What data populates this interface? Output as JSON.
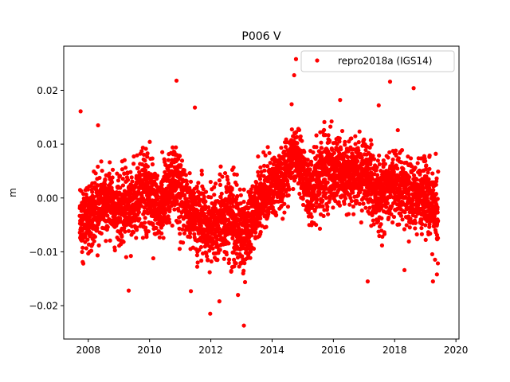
{
  "chart_data": {
    "type": "scatter",
    "title": "P006 V",
    "xlabel": "",
    "ylabel": "m",
    "xlim": [
      2007.2,
      2020.1
    ],
    "ylim": [
      -0.0262,
      0.0282
    ],
    "x_ticks": [
      2008,
      2010,
      2012,
      2014,
      2016,
      2018,
      2020
    ],
    "x_tick_labels": [
      "2008",
      "2010",
      "2012",
      "2014",
      "2016",
      "2018",
      "2020"
    ],
    "y_ticks": [
      -0.02,
      -0.01,
      0.0,
      0.01,
      0.02
    ],
    "y_tick_labels": [
      "−0.02",
      "−0.01",
      "0.00",
      "0.01",
      "0.02"
    ],
    "grid": false,
    "legend_position": "top-right",
    "marker_color": "#ff0000",
    "series": [
      {
        "name": "repro2018a (IGS14)",
        "color": "#ff0000",
        "x_range": [
          2007.72,
          2019.42
        ],
        "points": [
          {
            "x": 2007.75,
            "y": 0.0161
          },
          {
            "x": 2010.88,
            "y": 0.0218
          },
          {
            "x": 2014.78,
            "y": 0.0258
          },
          {
            "x": 2014.72,
            "y": 0.0228
          },
          {
            "x": 2017.85,
            "y": 0.0216
          },
          {
            "x": 2018.62,
            "y": 0.0204
          },
          {
            "x": 2013.08,
            "y": -0.0237
          },
          {
            "x": 2011.98,
            "y": -0.0215
          },
          {
            "x": 2009.32,
            "y": -0.0172
          },
          {
            "x": 2011.48,
            "y": 0.0168
          },
          {
            "x": 2011.35,
            "y": -0.0173
          },
          {
            "x": 2012.28,
            "y": -0.0192
          },
          {
            "x": 2017.12,
            "y": -0.0155
          },
          {
            "x": 2018.32,
            "y": -0.0134
          },
          {
            "x": 2019.25,
            "y": -0.0155
          },
          {
            "x": 2019.38,
            "y": -0.0142
          },
          {
            "x": 2016.22,
            "y": 0.0182
          },
          {
            "x": 2017.48,
            "y": 0.0172
          },
          {
            "x": 2008.32,
            "y": 0.0135
          }
        ],
        "trend": [
          {
            "x": 2007.8,
            "y": -0.004,
            "spread": 0.005
          },
          {
            "x": 2008.5,
            "y": -0.001,
            "spread": 0.005
          },
          {
            "x": 2009.2,
            "y": -0.002,
            "spread": 0.005
          },
          {
            "x": 2009.8,
            "y": 0.002,
            "spread": 0.006
          },
          {
            "x": 2010.3,
            "y": -0.002,
            "spread": 0.005
          },
          {
            "x": 2010.8,
            "y": 0.004,
            "spread": 0.006
          },
          {
            "x": 2011.3,
            "y": -0.002,
            "spread": 0.005
          },
          {
            "x": 2012.0,
            "y": -0.006,
            "spread": 0.006
          },
          {
            "x": 2012.6,
            "y": -0.003,
            "spread": 0.006
          },
          {
            "x": 2013.1,
            "y": -0.007,
            "spread": 0.006
          },
          {
            "x": 2013.6,
            "y": -0.001,
            "spread": 0.005
          },
          {
            "x": 2014.2,
            "y": 0.003,
            "spread": 0.005
          },
          {
            "x": 2014.8,
            "y": 0.008,
            "spread": 0.005
          },
          {
            "x": 2015.2,
            "y": 0.001,
            "spread": 0.005
          },
          {
            "x": 2015.8,
            "y": 0.006,
            "spread": 0.006
          },
          {
            "x": 2016.5,
            "y": 0.004,
            "spread": 0.005
          },
          {
            "x": 2017.0,
            "y": 0.005,
            "spread": 0.005
          },
          {
            "x": 2017.5,
            "y": 0.0,
            "spread": 0.005
          },
          {
            "x": 2018.0,
            "y": 0.003,
            "spread": 0.005
          },
          {
            "x": 2018.5,
            "y": 0.0,
            "spread": 0.005
          },
          {
            "x": 2019.0,
            "y": 0.001,
            "spread": 0.006
          },
          {
            "x": 2019.4,
            "y": -0.003,
            "spread": 0.005
          }
        ]
      }
    ]
  }
}
